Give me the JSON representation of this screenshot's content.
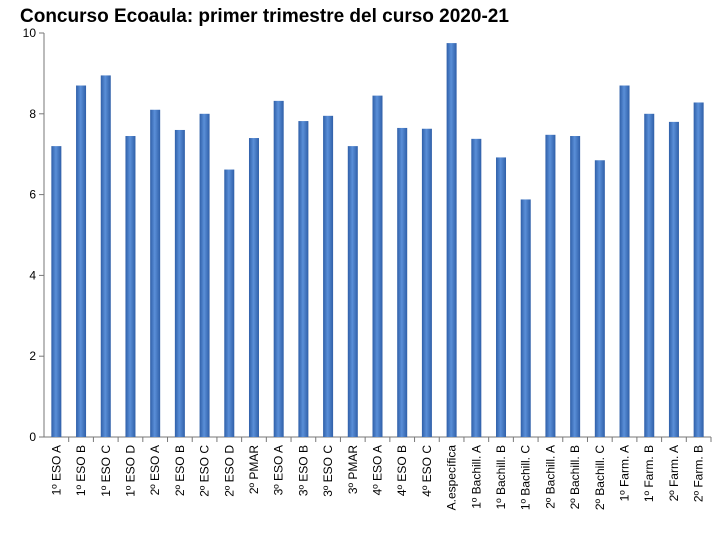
{
  "chart_data": {
    "type": "bar",
    "title": "Concurso Ecoaula: primer trimestre del curso 2020-21",
    "xlabel": "",
    "ylabel": "",
    "ylim": [
      0,
      10
    ],
    "yticks": [
      "0",
      "2",
      "4",
      "6",
      "8",
      "10"
    ],
    "grid": false,
    "legend": "none",
    "bar_color": "#3f73c0",
    "categories": [
      "1º ESO A",
      "1º ESO B",
      "1º ESO C",
      "1º ESO D",
      "2º ESO A",
      "2º ESO B",
      "2º ESO C",
      "2º ESO D",
      "2º PMAR",
      "3º ESO A",
      "3º ESO B",
      "3º ESO C",
      "3º PMAR",
      "4º ESO A",
      "4º ESO B",
      "4º ESO C",
      "A.específica",
      "1º Bachill. A",
      "1º Bachill. B",
      "1º Bachill. C",
      "2º Bachill. A",
      "2º Bachill. B",
      "2º Bachill. C",
      "1º Farm. A",
      "1º Farm. B",
      "2º Farm. A",
      "2º Farm. B"
    ],
    "values": [
      7.2,
      8.7,
      8.95,
      7.45,
      8.1,
      7.6,
      8.0,
      6.62,
      7.4,
      8.32,
      7.82,
      7.95,
      7.2,
      8.45,
      7.65,
      7.63,
      9.75,
      7.38,
      6.92,
      5.88,
      7.48,
      7.45,
      6.85,
      8.7,
      8.0,
      7.8,
      8.28
    ]
  }
}
